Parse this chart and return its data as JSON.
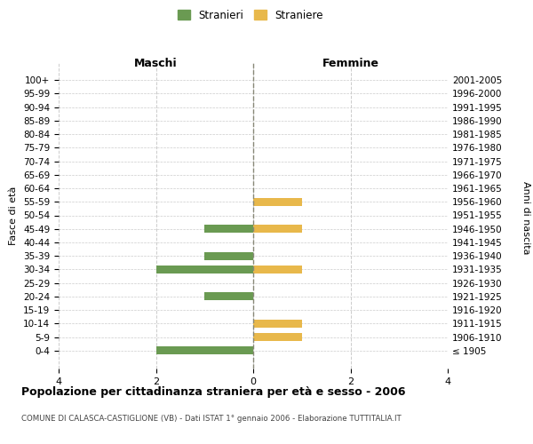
{
  "age_groups": [
    "100+",
    "95-99",
    "90-94",
    "85-89",
    "80-84",
    "75-79",
    "70-74",
    "65-69",
    "60-64",
    "55-59",
    "50-54",
    "45-49",
    "40-44",
    "35-39",
    "30-34",
    "25-29",
    "20-24",
    "15-19",
    "10-14",
    "5-9",
    "0-4"
  ],
  "birth_years": [
    "≤ 1905",
    "1906-1910",
    "1911-1915",
    "1916-1920",
    "1921-1925",
    "1926-1930",
    "1931-1935",
    "1936-1940",
    "1941-1945",
    "1946-1950",
    "1951-1955",
    "1956-1960",
    "1961-1965",
    "1966-1970",
    "1971-1975",
    "1976-1980",
    "1981-1985",
    "1986-1990",
    "1991-1995",
    "1996-2000",
    "2001-2005"
  ],
  "males": [
    0,
    0,
    0,
    0,
    0,
    0,
    0,
    0,
    0,
    0,
    0,
    1,
    0,
    1,
    2,
    0,
    1,
    0,
    0,
    0,
    2
  ],
  "females": [
    0,
    0,
    0,
    0,
    0,
    0,
    0,
    0,
    0,
    1,
    0,
    1,
    0,
    0,
    1,
    0,
    0,
    0,
    1,
    1,
    0
  ],
  "color_male": "#6a9a52",
  "color_female": "#e8b84b",
  "title": "Popolazione per cittadinanza straniera per età e sesso - 2006",
  "subtitle": "COMUNE DI CALASCA-CASTIGLIONE (VB) - Dati ISTAT 1° gennaio 2006 - Elaborazione TUTTITALIA.IT",
  "ylabel_left": "Fasce di età",
  "ylabel_right": "Anni di nascita",
  "xlabel_left": "Maschi",
  "xlabel_right": "Femmine",
  "legend_male": "Stranieri",
  "legend_female": "Straniere",
  "xlim": 4,
  "background_color": "#ffffff",
  "grid_color": "#cccccc"
}
